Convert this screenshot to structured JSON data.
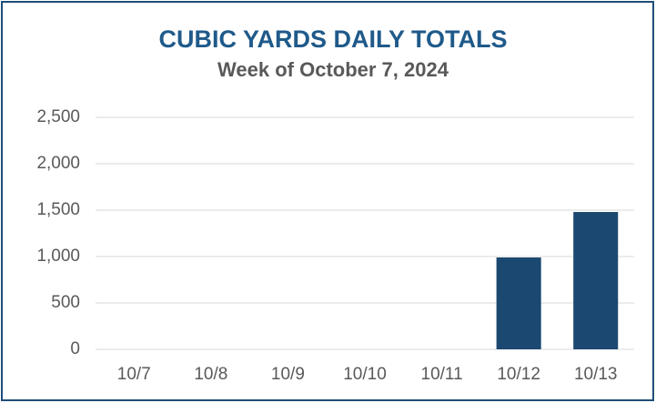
{
  "chart_data": {
    "type": "bar",
    "title": "CUBIC YARDS DAILY TOTALS",
    "subtitle": "Week of October 7, 2024",
    "categories": [
      "10/7",
      "10/8",
      "10/9",
      "10/10",
      "10/11",
      "10/12",
      "10/13"
    ],
    "values": [
      0,
      0,
      0,
      0,
      0,
      990,
      1480
    ],
    "color": "#1b4870",
    "ylim": [
      0,
      2500
    ],
    "yticks": [
      0,
      500,
      {
        "value": 1000,
        "label": "1,000"
      },
      {
        "value": 1500,
        "label": "1,500"
      },
      {
        "value": 2000,
        "label": "2,000"
      },
      {
        "value": 2500,
        "label": "2,500"
      }
    ],
    "grid": true
  }
}
